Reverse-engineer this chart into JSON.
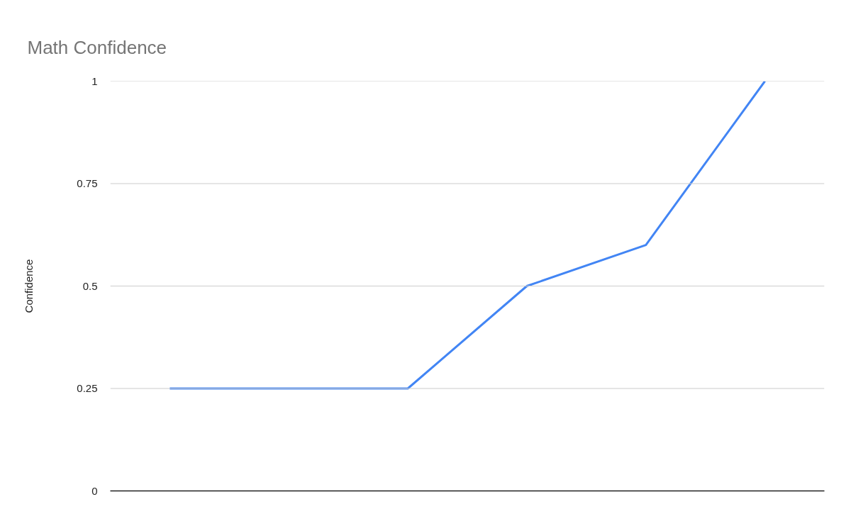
{
  "chart_data": {
    "type": "line",
    "title": "Math Confidence",
    "ylabel": "Confidence",
    "categories": [
      null,
      null,
      null,
      null,
      null,
      null
    ],
    "series": [
      {
        "color": "#4285f4",
        "values": [
          0.25,
          0.25,
          0.25,
          0.5,
          0.6,
          1
        ]
      }
    ],
    "ylim": [
      0,
      1
    ],
    "yticks": [
      0,
      0.25,
      0.5,
      0.75,
      1
    ],
    "grid": "y",
    "tick_labels": "y"
  }
}
